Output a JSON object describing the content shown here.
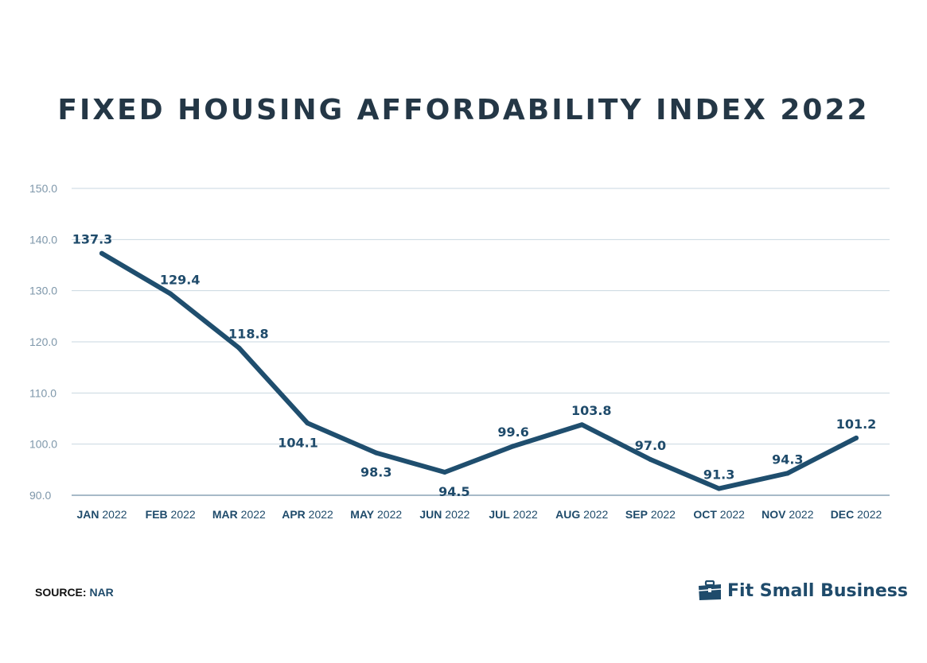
{
  "chart_data": {
    "type": "line",
    "title": "FIXED HOUSING AFFORDABILITY INDEX 2022",
    "categories": [
      {
        "month": "JAN",
        "year": "2022"
      },
      {
        "month": "FEB",
        "year": "2022"
      },
      {
        "month": "MAR",
        "year": "2022"
      },
      {
        "month": "APR",
        "year": "2022"
      },
      {
        "month": "MAY",
        "year": "2022"
      },
      {
        "month": "JUN",
        "year": "2022"
      },
      {
        "month": "JUL",
        "year": "2022"
      },
      {
        "month": "AUG",
        "year": "2022"
      },
      {
        "month": "SEP",
        "year": "2022"
      },
      {
        "month": "OCT",
        "year": "2022"
      },
      {
        "month": "NOV",
        "year": "2022"
      },
      {
        "month": "DEC",
        "year": "2022"
      }
    ],
    "values": [
      137.3,
      129.4,
      118.8,
      104.1,
      98.3,
      94.5,
      99.6,
      103.8,
      97.0,
      91.3,
      94.3,
      101.2
    ],
    "data_labels": [
      "137.3",
      "129.4",
      "118.8",
      "104.1",
      "98.3",
      "94.5",
      "99.6",
      "103.8",
      "97.0",
      "91.3",
      "94.3",
      "101.2"
    ],
    "y_ticks": [
      "90.0",
      "100.0",
      "110.0",
      "120.0",
      "130.0",
      "140.0",
      "150.0"
    ],
    "ylim": [
      90,
      150
    ],
    "grid": true,
    "line_color": "#1f4e6e"
  },
  "source": {
    "label": "SOURCE:",
    "value": "NAR"
  },
  "brand": {
    "name": "Fit Small Business",
    "icon": "briefcase-icon"
  }
}
